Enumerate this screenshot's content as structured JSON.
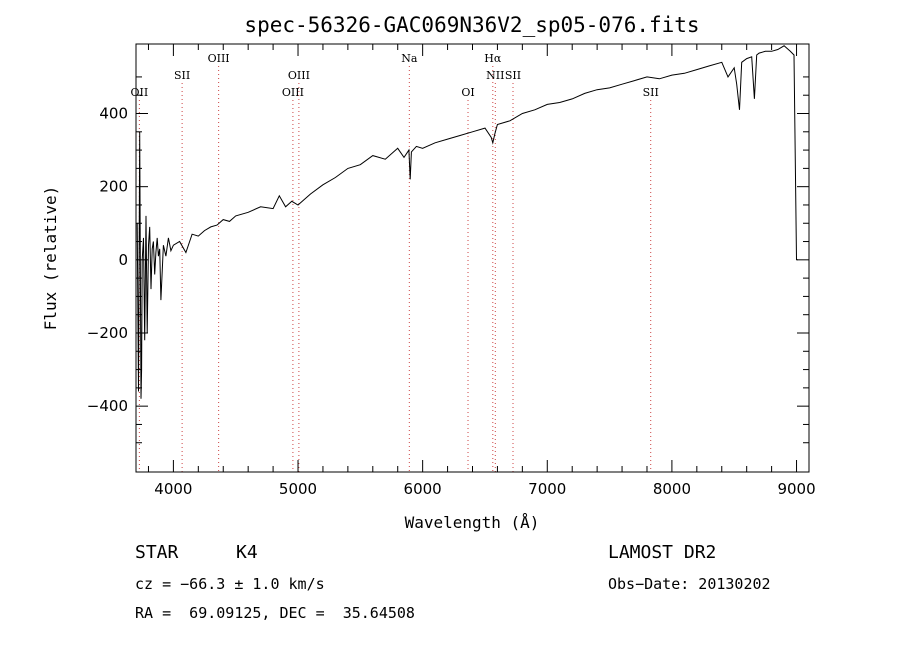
{
  "chart_data": {
    "type": "line",
    "title": "spec-56326-GAC069N36V2_sp05-076.fits",
    "xlabel": "Wavelength (Å)",
    "ylabel": "Flux (relative)",
    "xlim": [
      3700,
      9100
    ],
    "ylim": [
      -580,
      590
    ],
    "xticks": [
      4000,
      5000,
      6000,
      7000,
      8000,
      9000
    ],
    "yticks": [
      -400,
      -200,
      0,
      200,
      400
    ],
    "xtick_labels": [
      "4000",
      "5000",
      "6000",
      "7000",
      "8000",
      "9000"
    ],
    "ytick_labels": [
      "−400",
      "−200",
      "0",
      "200",
      "400"
    ],
    "grid": false,
    "series": [
      {
        "x": [
          3710,
          3720,
          3730,
          3740,
          3745,
          3750,
          3760,
          3770,
          3780,
          3790,
          3800,
          3810,
          3820,
          3830,
          3840,
          3850,
          3860,
          3870,
          3880,
          3890,
          3900,
          3920,
          3940,
          3960,
          3980,
          4000,
          4050,
          4100,
          4150,
          4200,
          4250,
          4300,
          4350,
          4400,
          4450,
          4500,
          4600,
          4700,
          4800,
          4850,
          4900,
          4950,
          5000,
          5100,
          5200,
          5300,
          5400,
          5500,
          5600,
          5700,
          5800,
          5850,
          5890,
          5900,
          5910,
          5950,
          6000,
          6100,
          6200,
          6300,
          6400,
          6500,
          6550,
          6563,
          6580,
          6600,
          6700,
          6800,
          6900,
          7000,
          7100,
          7200,
          7300,
          7400,
          7500,
          7600,
          7700,
          7800,
          7900,
          8000,
          8100,
          8200,
          8300,
          8400,
          8450,
          8500,
          8520,
          8542,
          8560,
          8600,
          8640,
          8662,
          8680,
          8700,
          8750,
          8800,
          8850,
          8900,
          8950,
          8980,
          9000,
          9010
        ],
        "y": [
          100,
          -360,
          350,
          -380,
          -300,
          0,
          60,
          -220,
          120,
          -200,
          40,
          90,
          -80,
          30,
          50,
          -40,
          20,
          60,
          10,
          30,
          -110,
          40,
          10,
          60,
          25,
          40,
          50,
          20,
          70,
          65,
          80,
          90,
          95,
          110,
          105,
          120,
          130,
          145,
          140,
          175,
          145,
          160,
          150,
          180,
          205,
          225,
          250,
          260,
          285,
          275,
          305,
          280,
          300,
          220,
          295,
          310,
          305,
          320,
          330,
          340,
          350,
          360,
          335,
          320,
          345,
          370,
          380,
          400,
          410,
          425,
          430,
          440,
          455,
          465,
          470,
          480,
          490,
          500,
          495,
          505,
          510,
          520,
          530,
          540,
          500,
          525,
          480,
          410,
          540,
          550,
          555,
          440,
          560,
          565,
          570,
          570,
          575,
          585,
          570,
          560,
          0,
          0
        ]
      }
    ],
    "lines": [
      {
        "name": "OII",
        "x": 3727,
        "tier": 3
      },
      {
        "name": "SII",
        "x": 4070,
        "tier": 2
      },
      {
        "name": "OIII",
        "x": 4363,
        "tier": 1
      },
      {
        "name": "OIII",
        "x": 4959,
        "tier": 3
      },
      {
        "name": "OIII",
        "x": 5007,
        "tier": 2
      },
      {
        "name": "Na",
        "x": 5893,
        "tier": 1
      },
      {
        "name": "OI",
        "x": 6364,
        "tier": 3
      },
      {
        "name": "Hα",
        "x": 6563,
        "tier": 1
      },
      {
        "name": "NII",
        "x": 6583,
        "tier": 2
      },
      {
        "name": "SII",
        "x": 6725,
        "tier": 2
      },
      {
        "name": "SII",
        "x": 7830,
        "tier": 3
      }
    ]
  },
  "info": {
    "class": "STAR",
    "subclass": "K4",
    "survey": "LAMOST DR2",
    "cz": "cz = −66.3 ± 1.0 km/s",
    "obs_date": "Obs−Date: 20130202",
    "radec": "RA =  69.09125, DEC =  35.64508"
  }
}
